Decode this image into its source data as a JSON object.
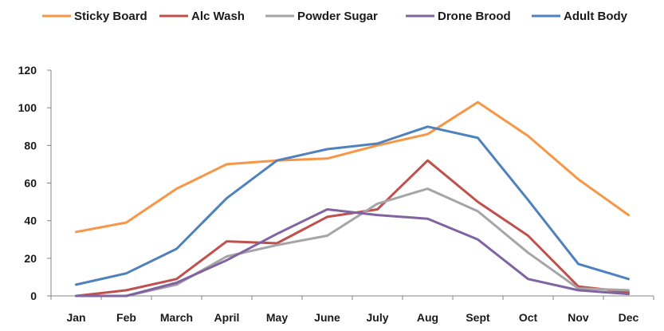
{
  "chart_data": {
    "type": "line",
    "categories": [
      "Jan",
      "Feb",
      "March",
      "April",
      "May",
      "June",
      "July",
      "Aug",
      "Sept",
      "Oct",
      "Nov",
      "Dec"
    ],
    "ylim": [
      0,
      120
    ],
    "yticks": [
      0,
      20,
      40,
      60,
      80,
      100,
      120
    ],
    "grid": false,
    "legend": "top",
    "series": [
      {
        "name": "Sticky Board",
        "color": "#F79646",
        "values": [
          34,
          39,
          57,
          70,
          72,
          73,
          80,
          86,
          103,
          85,
          62,
          43
        ]
      },
      {
        "name": "Alc Wash",
        "color": "#C0504D",
        "values": [
          0,
          3,
          9,
          29,
          28,
          42,
          46,
          72,
          50,
          32,
          5,
          2
        ]
      },
      {
        "name": "Powder Sugar",
        "color": "#A5A5A5",
        "values": [
          0,
          0,
          6,
          21,
          27,
          32,
          49,
          57,
          45,
          23,
          4,
          3
        ]
      },
      {
        "name": "Drone Brood",
        "color": "#8064A2",
        "values": [
          0,
          0,
          7,
          19,
          33,
          46,
          43,
          41,
          30,
          9,
          3,
          1
        ]
      },
      {
        "name": "Adult Body",
        "color": "#4F81BD",
        "values": [
          6,
          12,
          25,
          52,
          72,
          78,
          81,
          90,
          84,
          51,
          17,
          9
        ]
      }
    ]
  }
}
